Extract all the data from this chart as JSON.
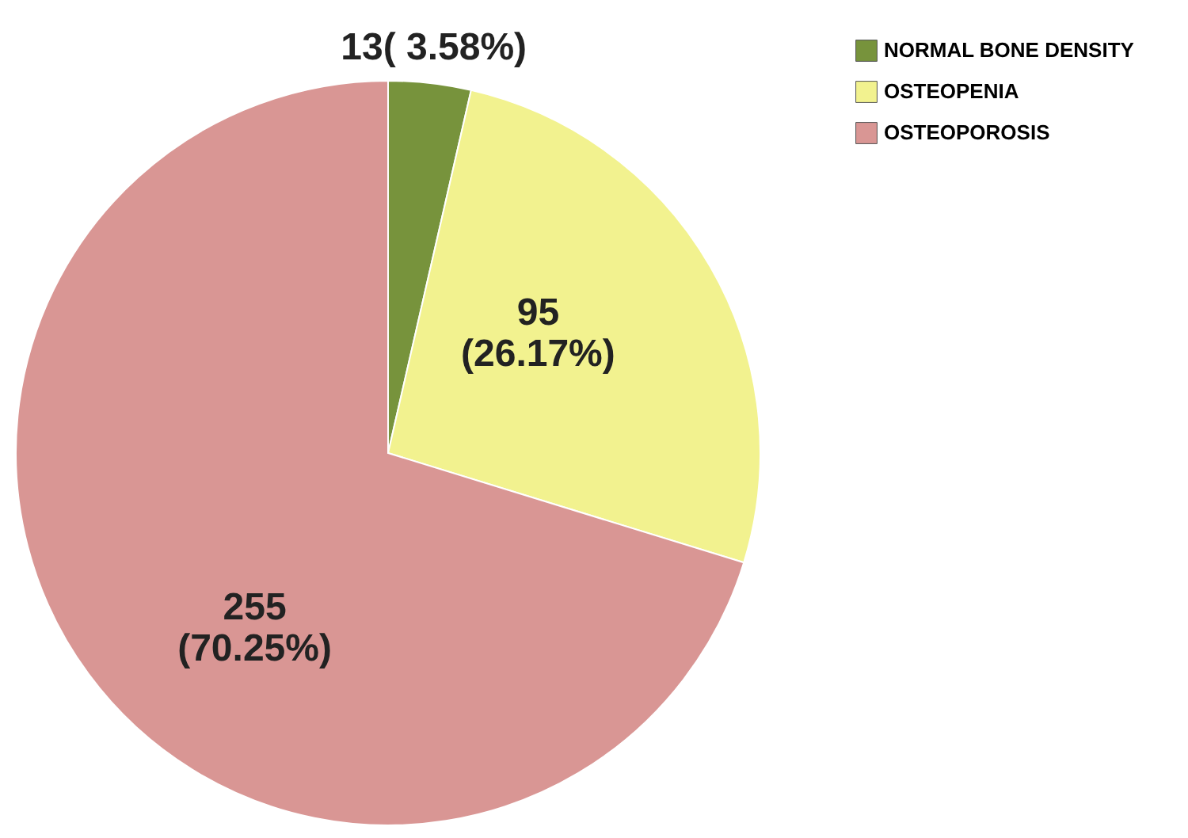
{
  "chart_data": {
    "type": "pie",
    "categories": [
      "NORMAL BONE DENSITY",
      "OSTEOPENIA",
      "OSTEOPOROSIS"
    ],
    "values": [
      13,
      95,
      255
    ],
    "colors": [
      "#77933c",
      "#f2f28f",
      "#d99694"
    ],
    "value_labels": [
      "13( 3.58%)",
      "95\n(26.17%)",
      "255\n(70.25%)"
    ],
    "legend": "top right"
  }
}
